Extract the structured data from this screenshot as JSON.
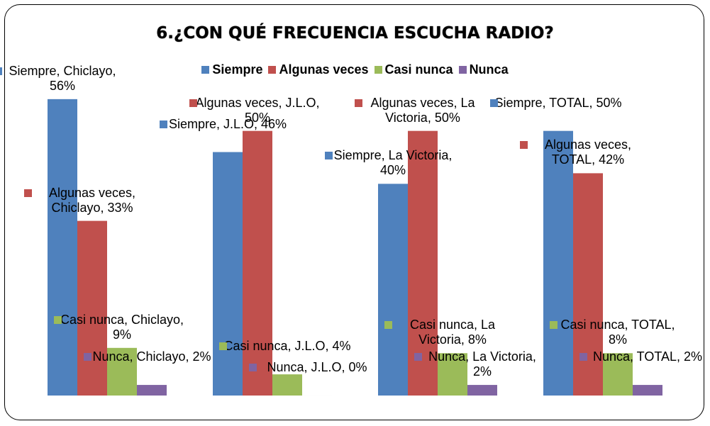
{
  "chart_data": {
    "type": "bar",
    "title": "6.¿CON QUÉ FRECUENCIA  ESCUCHA  RADIO?",
    "categories": [
      "Chiclayo",
      "J.L.O",
      "La Victoria",
      "TOTAL"
    ],
    "series": [
      {
        "name": "Siempre",
        "color": "#4f81bd",
        "values": [
          56,
          46,
          40,
          50
        ],
        "value_labels": [
          "Siempre, Chiclayo, 56%",
          "Siempre, J.L.O, 46%",
          "Siempre, La Victoria, 40%",
          "Siempre, TOTAL, 50%"
        ]
      },
      {
        "name": "Algunas veces",
        "color": "#c0504d",
        "values": [
          33,
          50,
          50,
          42
        ],
        "value_labels": [
          "Algunas veces, Chiclayo, 33%",
          "Algunas veces, J.L.O, 50%",
          "Algunas veces, La Victoria, 50%",
          "Algunas veces, TOTAL, 42%"
        ]
      },
      {
        "name": "Casi nunca",
        "color": "#9bbb59",
        "values": [
          9,
          4,
          8,
          8
        ],
        "value_labels": [
          "Casi nunca, Chiclayo, 9%",
          "Casi nunca, J.L.O, 4%",
          "Casi nunca, La Victoria, 8%",
          "Casi nunca, TOTAL, 8%"
        ]
      },
      {
        "name": "Nunca",
        "color": "#8064a2",
        "values": [
          2,
          0,
          2,
          2
        ],
        "value_labels": [
          "Nunca, Chiclayo, 2%",
          "Nunca, J.L.O, 0%",
          "Nunca, La Victoria, 2%",
          "Nunca, TOTAL, 2%"
        ]
      }
    ],
    "ylim": [
      0,
      60
    ],
    "legend": "top"
  }
}
